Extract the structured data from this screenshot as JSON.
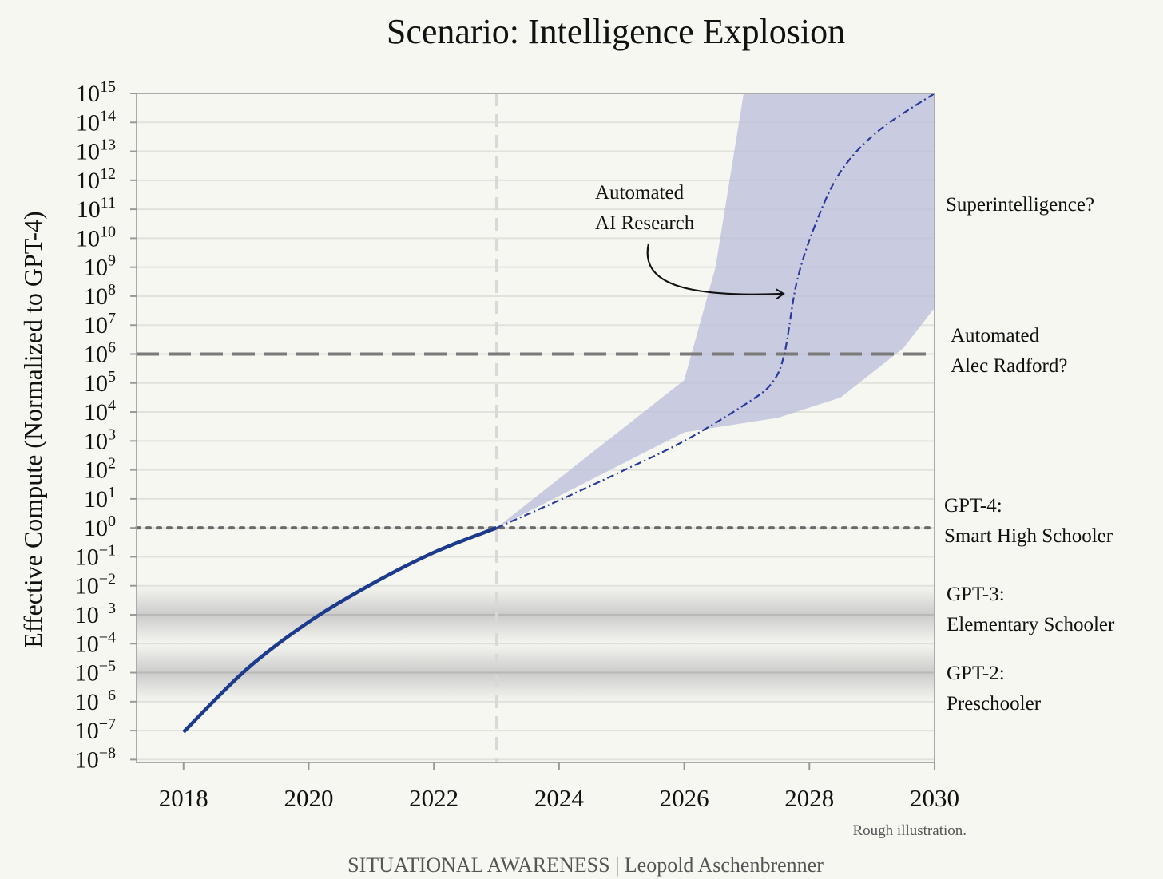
{
  "chart_data": {
    "type": "line",
    "title": "Scenario: Intelligence Explosion",
    "ylabel": "Effective Compute (Normalized to GPT-4)",
    "xlabel": "",
    "x_ticks": [
      "2018",
      "2020",
      "2022",
      "2024",
      "2026",
      "2028",
      "2030"
    ],
    "xlim": [
      2017.25,
      2030
    ],
    "y_scale": "log",
    "y_tick_exponents": [
      15,
      14,
      13,
      12,
      11,
      10,
      9,
      8,
      7,
      6,
      5,
      4,
      3,
      2,
      1,
      0,
      -1,
      -2,
      -3,
      -4,
      -5,
      -6,
      -7,
      -8
    ],
    "y_tick_base": "10",
    "ylim_exponent": [
      -8.1,
      15
    ],
    "grid": true,
    "series": [
      {
        "style": "solid",
        "color": "#1c3b8c",
        "points": [
          [
            2018,
            -7.05
          ],
          [
            2019,
            -4.9
          ],
          [
            2020,
            -3.25
          ],
          [
            2021,
            -1.95
          ],
          [
            2022,
            -0.85
          ],
          [
            2023,
            0
          ]
        ]
      },
      {
        "style": "dash-dot",
        "color": "#2a3a9a",
        "points": [
          [
            2023,
            0
          ],
          [
            2024,
            0.95
          ],
          [
            2025,
            1.95
          ],
          [
            2026,
            3.0
          ],
          [
            2027,
            4.3
          ],
          [
            2027.4,
            5.0
          ],
          [
            2027.6,
            6.0
          ],
          [
            2027.8,
            8.5
          ],
          [
            2028.1,
            10.5
          ],
          [
            2028.5,
            12.3
          ],
          [
            2029.1,
            13.7
          ],
          [
            2030,
            15
          ]
        ]
      }
    ],
    "uncertainty_band": {
      "color": "#b9bcd9",
      "upper": [
        [
          2023,
          0
        ],
        [
          2026,
          5.1
        ],
        [
          2026.5,
          9.0
        ],
        [
          2026.95,
          15
        ]
      ],
      "lower": [
        [
          2023,
          0
        ],
        [
          2026,
          3.3
        ],
        [
          2027.5,
          3.8
        ],
        [
          2028.5,
          4.5
        ],
        [
          2029.5,
          6.2
        ],
        [
          2030,
          7.6
        ]
      ]
    },
    "reference_lines": [
      {
        "y_exponent": 6,
        "style": "dashed",
        "color": "#7a7a7a"
      },
      {
        "y_exponent": 0,
        "style": "dotted",
        "color": "#6a6a6a"
      }
    ],
    "reference_bands": [
      {
        "y_exponent": -3,
        "color": "#cfcfcf"
      },
      {
        "y_exponent": -5,
        "color": "#cfcfcf"
      }
    ],
    "vertical_line": {
      "x": 2023,
      "style": "dashed",
      "color": "#d8d8d8"
    },
    "annotations": {
      "automated_research": [
        "Automated",
        "AI Research"
      ],
      "labels": [
        {
          "lines": [
            "Superintelligence?"
          ]
        },
        {
          "lines": [
            "Automated",
            "Alec Radford?"
          ]
        },
        {
          "lines": [
            "GPT-4:",
            "Smart High Schooler"
          ]
        },
        {
          "lines": [
            "GPT-3:",
            "Elementary Schooler"
          ]
        },
        {
          "lines": [
            "GPT-2:",
            "Preschooler"
          ]
        }
      ]
    },
    "note": "Rough illustration.",
    "footer": "SITUATIONAL AWARENESS | Leopold Aschenbrenner"
  }
}
